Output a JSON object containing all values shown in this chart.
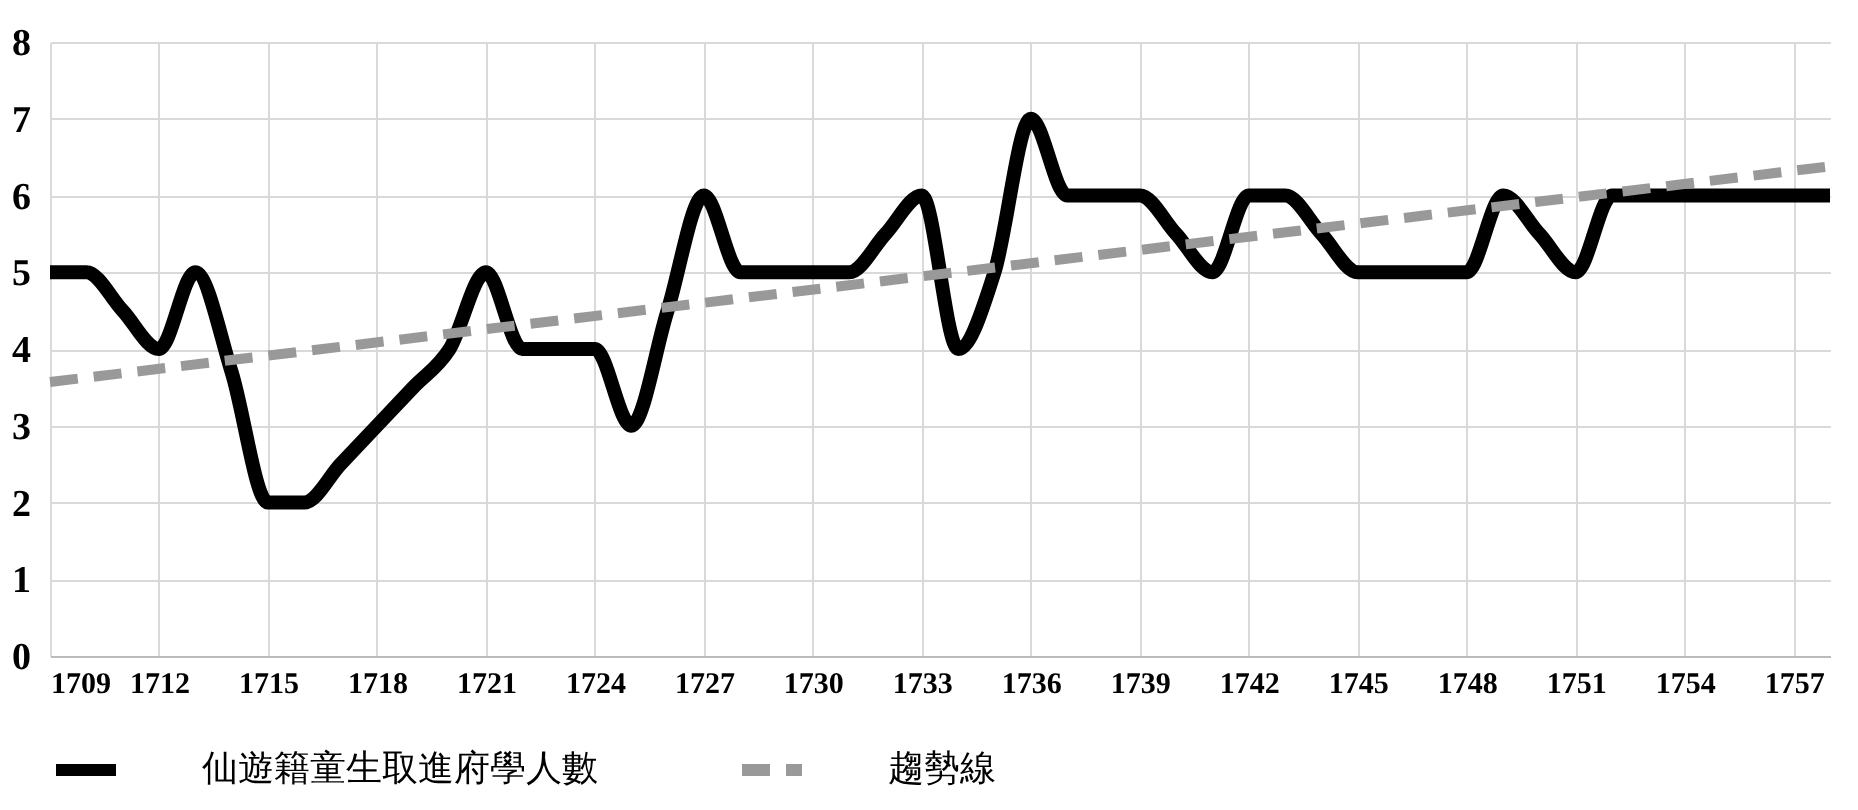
{
  "chart_data": {
    "type": "line",
    "x": [
      1709,
      1710,
      1711,
      1712,
      1713,
      1714,
      1715,
      1716,
      1717,
      1718,
      1719,
      1720,
      1721,
      1722,
      1723,
      1724,
      1725,
      1726,
      1727,
      1728,
      1729,
      1730,
      1731,
      1732,
      1733,
      1734,
      1735,
      1736,
      1737,
      1738,
      1739,
      1740,
      1741,
      1742,
      1743,
      1744,
      1745,
      1746,
      1747,
      1748,
      1749,
      1750,
      1751,
      1752,
      1753,
      1754,
      1755,
      1756,
      1757,
      1758
    ],
    "series": [
      {
        "name": "仙遊籍童生取進府學人數",
        "color": "#000000",
        "line_style": "solid",
        "values": [
          5,
          5,
          4.5,
          4,
          5,
          3.7,
          2,
          2,
          2.5,
          3,
          3.5,
          4,
          5,
          4,
          4,
          4,
          3,
          4.5,
          6,
          5,
          5,
          5,
          5,
          5.5,
          6,
          4,
          5,
          7,
          6,
          6,
          6,
          5.5,
          5,
          6,
          6,
          5.5,
          5,
          5,
          5,
          5,
          6,
          5.5,
          5,
          6,
          6,
          6,
          6,
          6,
          6,
          6
        ]
      },
      {
        "name": "趨勢線",
        "color": "#999999",
        "line_style": "dashed",
        "x": [
          1709,
          1758
        ],
        "values": [
          3.57,
          6.38
        ]
      }
    ],
    "xlim": [
      1709,
      1758
    ],
    "xticks": [
      1709,
      1712,
      1715,
      1718,
      1721,
      1724,
      1727,
      1730,
      1733,
      1736,
      1739,
      1742,
      1745,
      1748,
      1751,
      1754,
      1757
    ],
    "ylim": [
      0,
      8
    ],
    "yticks": [
      0,
      1,
      2,
      3,
      4,
      5,
      6,
      7,
      8
    ],
    "grid": true,
    "legend": "bottom",
    "marker": "none"
  }
}
